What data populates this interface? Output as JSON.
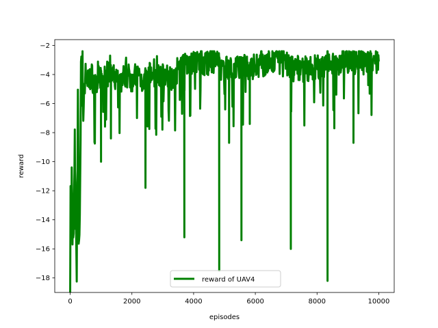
{
  "chart_data": {
    "type": "line",
    "xlabel": "episodes",
    "ylabel": "reward",
    "xlim": [
      -500,
      10500
    ],
    "ylim": [
      -19,
      -1.6
    ],
    "xticks": [
      0,
      2000,
      4000,
      6000,
      8000,
      10000
    ],
    "xtick_labels": [
      "0",
      "2000",
      "4000",
      "6000",
      "8000",
      "10000"
    ],
    "yticks": [
      -18,
      -16,
      -14,
      -12,
      -10,
      -8,
      -6,
      -4,
      -2
    ],
    "ytick_labels": [
      "−18",
      "−16",
      "−14",
      "−12",
      "−10",
      "−8",
      "−6",
      "−4",
      "−2"
    ],
    "grid": false,
    "legend_position": "lower center",
    "series": [
      {
        "name": "reward of UAV4",
        "color": "#008000",
        "x": [
          0,
          50,
          100,
          150,
          200,
          250,
          300,
          350,
          400,
          450,
          500,
          600,
          700,
          800,
          900,
          1000,
          1200,
          1400,
          1600,
          1800,
          2000,
          2200,
          2400,
          2600,
          2800,
          3000,
          3200,
          3400,
          3600,
          3700,
          3800,
          4000,
          4200,
          4400,
          4600,
          4800,
          4830,
          4900,
          5000,
          5200,
          5400,
          5550,
          5600,
          5800,
          6000,
          6200,
          6400,
          6600,
          6800,
          7000,
          7150,
          7200,
          7400,
          7600,
          7800,
          8000,
          8200,
          8300,
          8340,
          8400,
          8600,
          8800,
          9000,
          9200,
          9400,
          9600,
          9800,
          10000
        ],
        "y": [
          -15.5,
          -12,
          -17,
          -10,
          -17.5,
          -8,
          -18,
          -6,
          -4.5,
          -5,
          -4,
          -4.5,
          -4,
          -5,
          -4,
          -4.5,
          -4,
          -4.2,
          -4.5,
          -4,
          -4.3,
          -4,
          -4.5,
          -4,
          -4.2,
          -4,
          -4.3,
          -4,
          -3.2,
          -3.5,
          -3,
          -3.2,
          -3,
          -3.3,
          -3,
          -3.2,
          -3.5,
          -3.6,
          -3.5,
          -3.6,
          -3.7,
          -3.6,
          -3.5,
          -3.6,
          -3.4,
          -3.2,
          -3.3,
          -3.1,
          -3.2,
          -3.3,
          -3.5,
          -3.6,
          -3.5,
          -3.7,
          -3.6,
          -3.5,
          -3.6,
          -3.5,
          -3.1,
          -3,
          -3.2,
          -3.1,
          -3,
          -3.2,
          -3,
          -3.2,
          -3,
          -3.1
        ],
        "spikes": [
          {
            "x": 2440,
            "y": -11.8
          },
          {
            "x": 3700,
            "y": -15.2
          },
          {
            "x": 4830,
            "y": -17.5
          },
          {
            "x": 5150,
            "y": -8.7
          },
          {
            "x": 5550,
            "y": -15.4
          },
          {
            "x": 7150,
            "y": -16.0
          },
          {
            "x": 8340,
            "y": -18.2
          },
          {
            "x": 8560,
            "y": -7.7
          },
          {
            "x": 9180,
            "y": -8.7
          },
          {
            "x": 1320,
            "y": -8.4
          },
          {
            "x": 1000,
            "y": -10.0
          },
          {
            "x": 5820,
            "y": -7.4
          }
        ]
      }
    ]
  }
}
